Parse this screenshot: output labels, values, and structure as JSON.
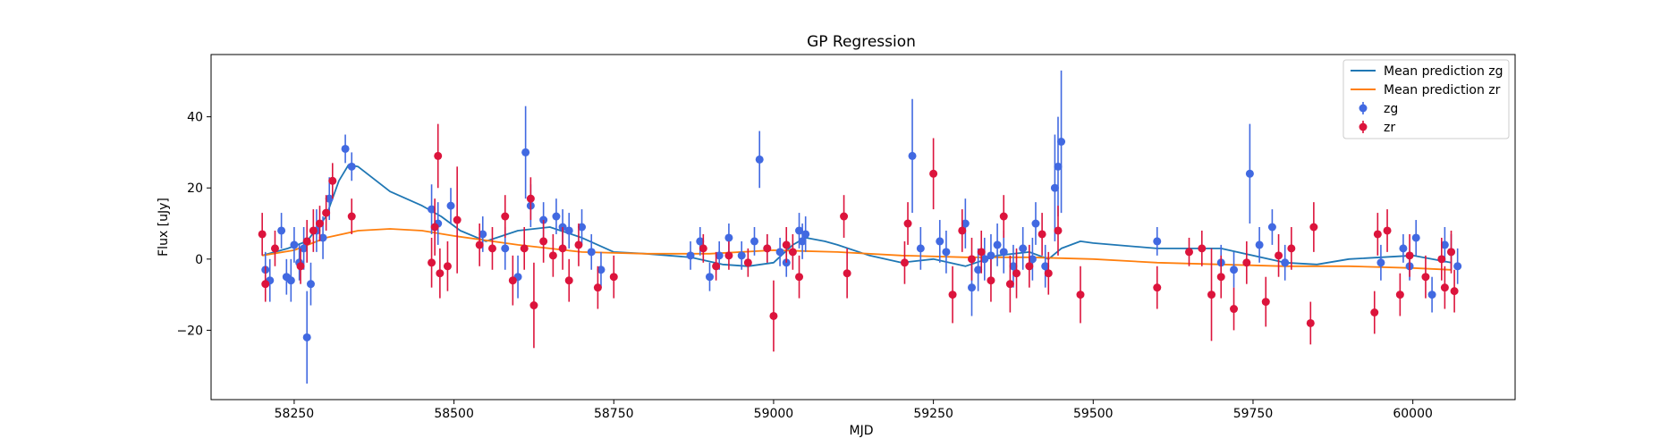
{
  "colors": {
    "zg_points": "#4169e1",
    "zr_points": "#dc143c",
    "zg_line": "#1f77b4",
    "zr_line": "#ff7f0e"
  },
  "chart_data": {
    "type": "scatter",
    "title": "GP Regression",
    "xlabel": "MJD",
    "ylabel": "Flux [uJy]",
    "xlim": [
      58120,
      60160
    ],
    "ylim": [
      -39.5,
      57.5
    ],
    "xticks": [
      58250,
      58500,
      58750,
      59000,
      59250,
      59500,
      59750,
      60000
    ],
    "yticks": [
      -20,
      0,
      20,
      40
    ],
    "grid": false,
    "legend_position": "top-right",
    "legend": [
      {
        "label": "Mean prediction zg",
        "kind": "line",
        "color": "#1f77b4"
      },
      {
        "label": "Mean prediction zr",
        "kind": "line",
        "color": "#ff7f0e"
      },
      {
        "label": "zg",
        "kind": "errorbar",
        "color": "#4169e1"
      },
      {
        "label": "zr",
        "kind": "errorbar",
        "color": "#dc143c"
      }
    ],
    "lines": [
      {
        "name": "Mean prediction zg",
        "color": "#1f77b4",
        "x": [
          58200,
          58240,
          58270,
          58300,
          58320,
          58335,
          58350,
          58400,
          58450,
          58480,
          58510,
          58550,
          58600,
          58650,
          58700,
          58750,
          58800,
          58870,
          58920,
          58960,
          59000,
          59030,
          59050,
          59080,
          59100,
          59150,
          59200,
          59250,
          59300,
          59350,
          59400,
          59430,
          59450,
          59480,
          59500,
          59600,
          59700,
          59800,
          59850,
          59900,
          60000,
          60060
        ],
        "y": [
          1,
          3,
          5,
          12,
          22,
          26.5,
          26,
          19,
          15,
          12,
          8,
          5,
          8,
          9,
          6,
          2,
          1.5,
          0.5,
          -1.5,
          -2,
          -1,
          4,
          6,
          5,
          4,
          1,
          -1,
          0,
          -2,
          1,
          2,
          0,
          3,
          5,
          4.5,
          3,
          3,
          -1,
          -1.5,
          0,
          1,
          -1
        ]
      },
      {
        "name": "Mean prediction zr",
        "color": "#ff7f0e",
        "x": [
          58200,
          58250,
          58300,
          58350,
          58400,
          58450,
          58500,
          58600,
          58700,
          58800,
          58900,
          59000,
          59100,
          59200,
          59300,
          59400,
          59500,
          59600,
          59700,
          59800,
          59900,
          60000,
          60060
        ],
        "y": [
          1,
          2.5,
          6,
          8,
          8.5,
          8,
          6.5,
          4,
          2,
          1.5,
          1.5,
          2.5,
          2,
          1,
          0.5,
          0.5,
          0,
          -1,
          -1.5,
          -2,
          -2,
          -2.5,
          -3
        ]
      }
    ],
    "series": [
      {
        "name": "zg",
        "color": "#4169e1",
        "points": [
          [
            58205,
            -3,
            5
          ],
          [
            58212,
            -6,
            6
          ],
          [
            58230,
            8,
            5
          ],
          [
            58238,
            -5,
            5
          ],
          [
            58245,
            -6,
            6
          ],
          [
            58250,
            4,
            5
          ],
          [
            58258,
            -1,
            5
          ],
          [
            58265,
            3,
            6
          ],
          [
            58270,
            -22,
            13
          ],
          [
            58276,
            -7,
            6
          ],
          [
            58285,
            8,
            6
          ],
          [
            58295,
            6,
            6
          ],
          [
            58305,
            17,
            6
          ],
          [
            58330,
            31,
            4
          ],
          [
            58340,
            26,
            4
          ],
          [
            58465,
            14,
            7
          ],
          [
            58475,
            10,
            6
          ],
          [
            58495,
            15,
            5
          ],
          [
            58545,
            7,
            5
          ],
          [
            58580,
            3,
            6
          ],
          [
            58600,
            -5,
            6
          ],
          [
            58612,
            30,
            13
          ],
          [
            58620,
            15,
            6
          ],
          [
            58640,
            11,
            5
          ],
          [
            58660,
            12,
            5
          ],
          [
            58670,
            9,
            5
          ],
          [
            58680,
            8,
            5
          ],
          [
            58700,
            9,
            5
          ],
          [
            58715,
            2,
            5
          ],
          [
            58730,
            -3,
            5
          ],
          [
            58870,
            1,
            4
          ],
          [
            58885,
            5,
            4
          ],
          [
            58900,
            -5,
            4
          ],
          [
            58915,
            1,
            4
          ],
          [
            58930,
            6,
            4
          ],
          [
            58950,
            1,
            4
          ],
          [
            58970,
            5,
            4
          ],
          [
            58978,
            28,
            8
          ],
          [
            58990,
            3,
            4
          ],
          [
            59010,
            2,
            4
          ],
          [
            59020,
            -1,
            4
          ],
          [
            59040,
            8,
            5
          ],
          [
            59045,
            5,
            5
          ],
          [
            59050,
            7,
            5
          ],
          [
            59217,
            29,
            16
          ],
          [
            59230,
            3,
            6
          ],
          [
            59260,
            5,
            6
          ],
          [
            59270,
            2,
            6
          ],
          [
            59300,
            10,
            7
          ],
          [
            59310,
            -8,
            8
          ],
          [
            59320,
            -3,
            6
          ],
          [
            59330,
            0,
            6
          ],
          [
            59340,
            1,
            6
          ],
          [
            59350,
            4,
            6
          ],
          [
            59360,
            2,
            6
          ],
          [
            59375,
            -2,
            6
          ],
          [
            59390,
            3,
            6
          ],
          [
            59405,
            0,
            6
          ],
          [
            59410,
            10,
            6
          ],
          [
            59425,
            -2,
            6
          ],
          [
            59440,
            20,
            15
          ],
          [
            59445,
            26,
            14
          ],
          [
            59450,
            33,
            20
          ],
          [
            59600,
            5,
            4
          ],
          [
            59700,
            -1,
            5
          ],
          [
            59720,
            -3,
            5
          ],
          [
            59745,
            24,
            14
          ],
          [
            59760,
            4,
            5
          ],
          [
            59780,
            9,
            5
          ],
          [
            59800,
            -1,
            5
          ],
          [
            59950,
            -1,
            5
          ],
          [
            59985,
            3,
            4
          ],
          [
            59995,
            -2,
            4
          ],
          [
            60005,
            6,
            5
          ],
          [
            60030,
            -10,
            5
          ],
          [
            60050,
            4,
            5
          ],
          [
            60060,
            2,
            5
          ],
          [
            60070,
            -2,
            5
          ]
        ]
      },
      {
        "name": "zr",
        "color": "#dc143c",
        "points": [
          [
            58200,
            7,
            6
          ],
          [
            58205,
            -7,
            5
          ],
          [
            58220,
            3,
            5
          ],
          [
            58260,
            -2,
            5
          ],
          [
            58270,
            5,
            6
          ],
          [
            58280,
            8,
            6
          ],
          [
            58290,
            10,
            5
          ],
          [
            58300,
            13,
            5
          ],
          [
            58310,
            22,
            5
          ],
          [
            58340,
            12,
            5
          ],
          [
            58465,
            -1,
            7
          ],
          [
            58470,
            9,
            8
          ],
          [
            58475,
            29,
            9
          ],
          [
            58478,
            -4,
            7
          ],
          [
            58490,
            -2,
            7
          ],
          [
            58505,
            11,
            15
          ],
          [
            58540,
            4,
            6
          ],
          [
            58560,
            3,
            6
          ],
          [
            58580,
            12,
            6
          ],
          [
            58592,
            -6,
            7
          ],
          [
            58610,
            3,
            6
          ],
          [
            58620,
            17,
            6
          ],
          [
            58625,
            -13,
            12
          ],
          [
            58640,
            5,
            6
          ],
          [
            58655,
            1,
            6
          ],
          [
            58670,
            3,
            6
          ],
          [
            58680,
            -6,
            6
          ],
          [
            58695,
            4,
            6
          ],
          [
            58725,
            -8,
            6
          ],
          [
            58750,
            -5,
            6
          ],
          [
            58890,
            3,
            4
          ],
          [
            58910,
            -2,
            4
          ],
          [
            58930,
            1,
            4
          ],
          [
            58960,
            -1,
            4
          ],
          [
            58990,
            3,
            4
          ],
          [
            59000,
            -16,
            10
          ],
          [
            59020,
            4,
            5
          ],
          [
            59030,
            2,
            5
          ],
          [
            59040,
            -5,
            6
          ],
          [
            59110,
            12,
            6
          ],
          [
            59115,
            -4,
            7
          ],
          [
            59205,
            -1,
            6
          ],
          [
            59210,
            10,
            6
          ],
          [
            59250,
            24,
            10
          ],
          [
            59280,
            -10,
            8
          ],
          [
            59295,
            8,
            6
          ],
          [
            59310,
            0,
            6
          ],
          [
            59325,
            2,
            6
          ],
          [
            59340,
            -6,
            6
          ],
          [
            59360,
            12,
            6
          ],
          [
            59370,
            -7,
            8
          ],
          [
            59380,
            -4,
            7
          ],
          [
            59400,
            -2,
            6
          ],
          [
            59420,
            7,
            6
          ],
          [
            59430,
            -4,
            6
          ],
          [
            59445,
            8,
            7
          ],
          [
            59480,
            -10,
            8
          ],
          [
            59600,
            -8,
            6
          ],
          [
            59650,
            2,
            4
          ],
          [
            59670,
            3,
            5
          ],
          [
            59685,
            -10,
            13
          ],
          [
            59700,
            -5,
            6
          ],
          [
            59720,
            -14,
            6
          ],
          [
            59740,
            -1,
            6
          ],
          [
            59770,
            -12,
            7
          ],
          [
            59790,
            1,
            6
          ],
          [
            59810,
            3,
            6
          ],
          [
            59840,
            -18,
            6
          ],
          [
            59845,
            9,
            7
          ],
          [
            59940,
            -15,
            6
          ],
          [
            59945,
            7,
            6
          ],
          [
            59960,
            8,
            6
          ],
          [
            59980,
            -10,
            6
          ],
          [
            59995,
            1,
            6
          ],
          [
            60020,
            -5,
            6
          ],
          [
            60045,
            0,
            6
          ],
          [
            60050,
            -8,
            6
          ],
          [
            60060,
            2,
            6
          ],
          [
            60065,
            -9,
            6
          ]
        ]
      }
    ]
  }
}
